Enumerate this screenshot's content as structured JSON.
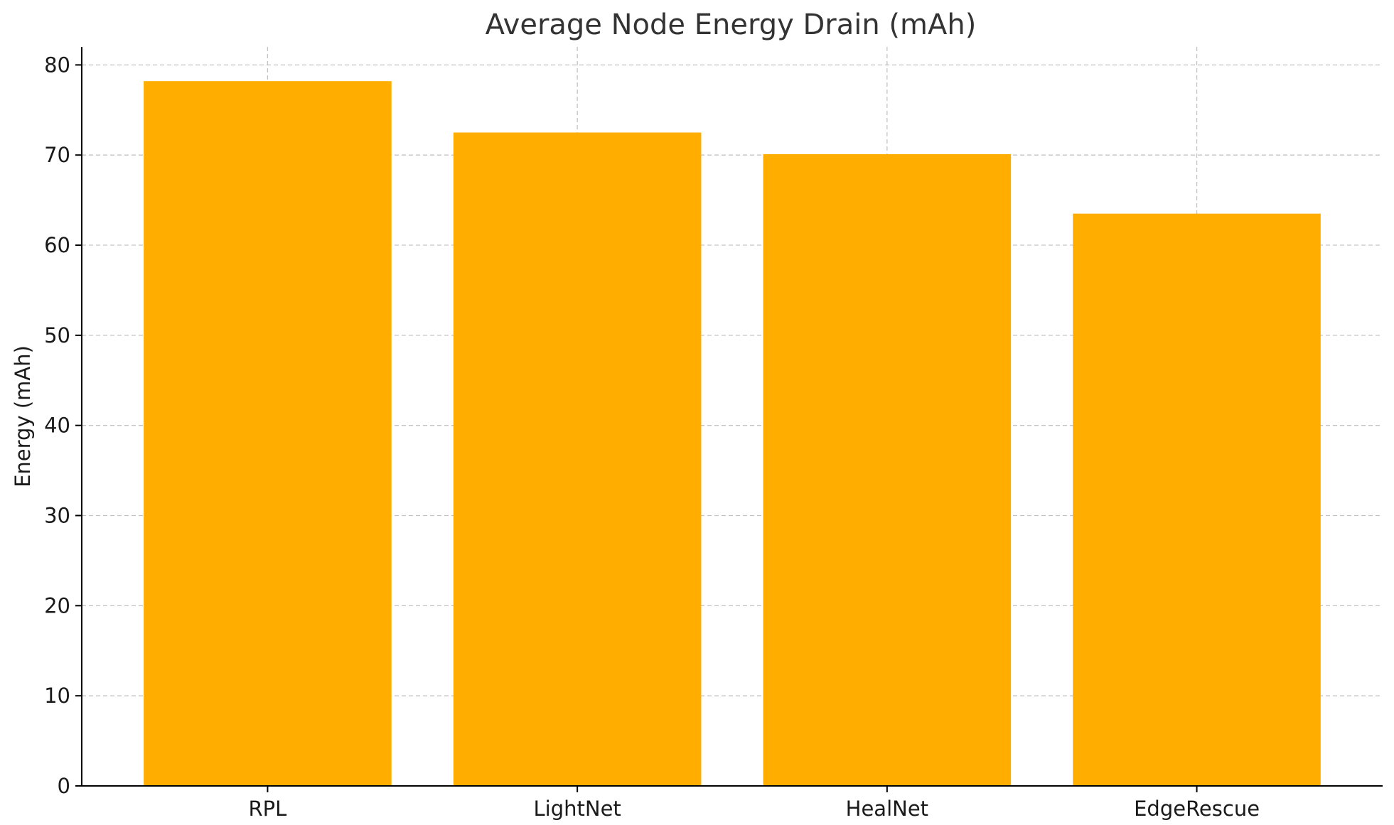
{
  "chart_data": {
    "type": "bar",
    "title": "Average Node Energy Drain (mAh)",
    "xlabel": "",
    "ylabel": "Energy (mAh)",
    "categories": [
      "RPL",
      "LightNet",
      "HealNet",
      "EdgeRescue"
    ],
    "values": [
      78.2,
      72.5,
      70.1,
      63.5
    ],
    "ylim": [
      0,
      82
    ],
    "yticks": [
      0,
      10,
      20,
      30,
      40,
      50,
      60,
      70,
      80
    ],
    "grid": true,
    "bar_color": "#FFAE00",
    "legend": null
  }
}
